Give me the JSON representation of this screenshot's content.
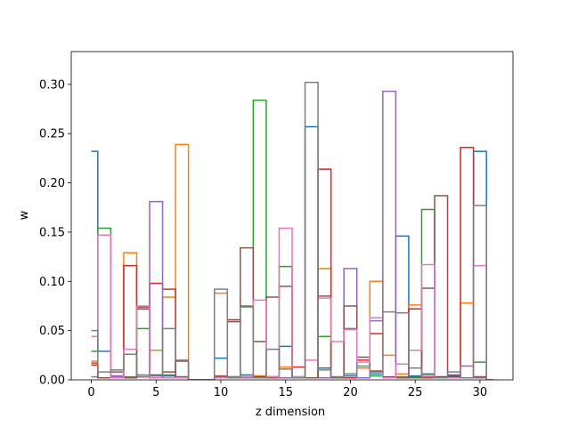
{
  "chart_data": {
    "type": "step",
    "title": "",
    "xlabel": "z dimension",
    "ylabel": "w",
    "xlim": [
      -1.55,
      32.55
    ],
    "ylim": [
      0,
      0.3333
    ],
    "xticks": [
      0,
      5,
      10,
      15,
      20,
      25,
      30
    ],
    "yticks": [
      0.0,
      0.05,
      0.1,
      0.15,
      0.2,
      0.25,
      0.3
    ],
    "grid": false,
    "x": [
      0,
      1,
      2,
      3,
      4,
      5,
      6,
      7,
      8,
      9,
      10,
      11,
      12,
      13,
      14,
      15,
      16,
      17,
      18,
      19,
      20,
      21,
      22,
      23,
      24,
      25,
      26,
      27,
      28,
      29,
      30,
      31
    ],
    "series": [
      {
        "color": "#1f77b4",
        "values": [
          0.232,
          0.029,
          0.003,
          0.002,
          0.003,
          0.005,
          0.004,
          0.003,
          0.0,
          0.0,
          0.022,
          0.003,
          0.005,
          0.004,
          0.003,
          0.034,
          0.003,
          0.257,
          0.012,
          0.003,
          0.004,
          0.002,
          0.006,
          0.002,
          0.146,
          0.004,
          0.006,
          0.003,
          0.004,
          0.002,
          0.232,
          0.0
        ]
      },
      {
        "color": "#ff7f0e",
        "values": [
          0.019,
          0.002,
          0.003,
          0.129,
          0.003,
          0.03,
          0.084,
          0.239,
          0.0,
          0.0,
          0.088,
          0.002,
          0.003,
          0.004,
          0.003,
          0.013,
          0.003,
          0.002,
          0.113,
          0.002,
          0.006,
          0.012,
          0.1,
          0.025,
          0.006,
          0.076,
          0.005,
          0.003,
          0.002,
          0.078,
          0.002,
          0.0
        ]
      },
      {
        "color": "#2ca02c",
        "values": [
          0.029,
          0.154,
          0.002,
          0.003,
          0.052,
          0.002,
          0.005,
          0.003,
          0.0,
          0.0,
          0.002,
          0.003,
          0.075,
          0.284,
          0.003,
          0.115,
          0.002,
          0.002,
          0.044,
          0.002,
          0.052,
          0.002,
          0.004,
          0.002,
          0.003,
          0.002,
          0.173,
          0.002,
          0.003,
          0.002,
          0.018,
          0.0
        ]
      },
      {
        "color": "#d62728",
        "values": [
          0.015,
          0.002,
          0.004,
          0.116,
          0.072,
          0.098,
          0.092,
          0.002,
          0.0,
          0.0,
          0.003,
          0.061,
          0.002,
          0.003,
          0.002,
          0.002,
          0.013,
          0.002,
          0.214,
          0.002,
          0.002,
          0.02,
          0.047,
          0.003,
          0.002,
          0.072,
          0.002,
          0.003,
          0.003,
          0.236,
          0.003,
          0.0
        ]
      },
      {
        "color": "#9467bd",
        "values": [
          0.003,
          0.002,
          0.004,
          0.002,
          0.003,
          0.181,
          0.002,
          0.002,
          0.0,
          0.0,
          0.003,
          0.003,
          0.002,
          0.002,
          0.003,
          0.002,
          0.003,
          0.002,
          0.002,
          0.002,
          0.113,
          0.002,
          0.06,
          0.293,
          0.002,
          0.03,
          0.003,
          0.002,
          0.002,
          0.014,
          0.002,
          0.0
        ]
      },
      {
        "color": "#8c564b",
        "values": [
          0.017,
          0.002,
          0.008,
          0.002,
          0.074,
          0.004,
          0.008,
          0.019,
          0.0,
          0.0,
          0.004,
          0.059,
          0.134,
          0.039,
          0.084,
          0.095,
          0.002,
          0.002,
          0.085,
          0.002,
          0.075,
          0.023,
          0.009,
          0.002,
          0.002,
          0.003,
          0.093,
          0.187,
          0.005,
          0.002,
          0.003,
          0.0
        ]
      },
      {
        "color": "#e377c2",
        "values": [
          0.044,
          0.147,
          0.002,
          0.031,
          0.075,
          0.002,
          0.002,
          0.002,
          0.0,
          0.0,
          0.002,
          0.002,
          0.003,
          0.081,
          0.003,
          0.154,
          0.003,
          0.02,
          0.083,
          0.039,
          0.051,
          0.018,
          0.063,
          0.002,
          0.016,
          0.03,
          0.117,
          0.002,
          0.002,
          0.002,
          0.116,
          0.0
        ]
      },
      {
        "color": "#7f7f7f",
        "values": [
          0.05,
          0.008,
          0.01,
          0.026,
          0.005,
          0.004,
          0.052,
          0.02,
          0.0,
          0.0,
          0.092,
          0.002,
          0.074,
          0.002,
          0.031,
          0.011,
          0.002,
          0.302,
          0.01,
          0.003,
          0.006,
          0.014,
          0.008,
          0.069,
          0.068,
          0.012,
          0.003,
          0.002,
          0.008,
          0.002,
          0.177,
          0.0
        ]
      }
    ]
  }
}
